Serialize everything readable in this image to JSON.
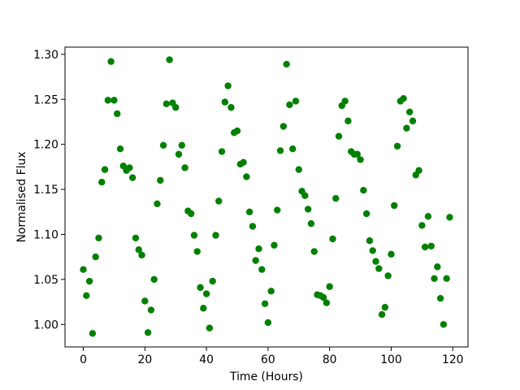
{
  "chart_data": {
    "type": "scatter",
    "xlabel": "Time (Hours)",
    "ylabel": "Normalised Flux",
    "color": "#008000",
    "grid": false,
    "x": [
      0,
      1,
      2,
      3,
      4,
      5,
      6,
      7,
      8,
      9,
      10,
      11,
      12,
      13,
      14,
      15,
      16,
      17,
      18,
      19,
      20,
      21,
      22,
      23,
      24,
      25,
      26,
      27,
      28,
      29,
      30,
      31,
      32,
      33,
      34,
      35,
      36,
      37,
      38,
      39,
      40,
      41,
      42,
      43,
      44,
      45,
      46,
      47,
      48,
      49,
      50,
      51,
      52,
      53,
      54,
      55,
      56,
      57,
      58,
      59,
      60,
      61,
      62,
      63,
      64,
      65,
      66,
      67,
      68,
      69,
      70,
      71,
      72,
      73,
      74,
      75,
      76,
      77,
      78,
      79,
      80,
      81,
      82,
      83,
      84,
      85,
      86,
      87,
      88,
      89,
      90,
      91,
      92,
      93,
      94,
      95,
      96,
      97,
      98,
      99,
      100,
      101,
      102,
      103,
      104,
      105,
      106,
      107,
      108,
      109,
      110,
      111,
      112,
      113,
      114,
      115,
      116,
      117,
      118,
      119
    ],
    "values": [
      1.061,
      1.032,
      1.048,
      0.99,
      1.075,
      1.096,
      1.158,
      1.172,
      1.249,
      1.292,
      1.249,
      1.234,
      1.195,
      1.176,
      1.171,
      1.174,
      1.163,
      1.096,
      1.083,
      1.077,
      1.026,
      0.991,
      1.016,
      1.05,
      1.134,
      1.16,
      1.199,
      1.245,
      1.294,
      1.246,
      1.241,
      1.189,
      1.199,
      1.174,
      1.126,
      1.123,
      1.099,
      1.081,
      1.041,
      1.018,
      1.034,
      0.996,
      1.048,
      1.099,
      1.137,
      1.192,
      1.247,
      1.265,
      1.241,
      1.213,
      1.215,
      1.178,
      1.18,
      1.164,
      1.125,
      1.109,
      1.071,
      1.084,
      1.061,
      1.023,
      1.002,
      1.037,
      1.088,
      1.127,
      1.193,
      1.22,
      1.289,
      1.244,
      1.195,
      1.248,
      1.172,
      1.148,
      1.143,
      1.128,
      1.112,
      1.081,
      1.033,
      1.032,
      1.03,
      1.024,
      1.042,
      1.095,
      1.14,
      1.209,
      1.243,
      1.248,
      1.226,
      1.192,
      1.189,
      1.189,
      1.183,
      1.149,
      1.123,
      1.093,
      1.082,
      1.07,
      1.062,
      1.011,
      1.019,
      1.054,
      1.078,
      1.132,
      1.198,
      1.248,
      1.251,
      1.218,
      1.236,
      1.226,
      1.166,
      1.171,
      1.11,
      1.086,
      1.12,
      1.087,
      1.051,
      1.064,
      1.029,
      1.0,
      1.051,
      1.119
    ],
    "xlim": [
      -5.95,
      124.95
    ],
    "ylim": [
      0.975,
      1.308
    ],
    "xticks": [
      0,
      20,
      40,
      60,
      80,
      100,
      120
    ],
    "yticks": [
      {
        "value": 1.0,
        "label": "1.00"
      },
      1.05,
      {
        "value": 1.1,
        "label": "1.10"
      },
      1.15,
      {
        "value": 1.2,
        "label": "1.20"
      },
      1.25,
      {
        "value": 1.3,
        "label": "1.30"
      }
    ]
  }
}
